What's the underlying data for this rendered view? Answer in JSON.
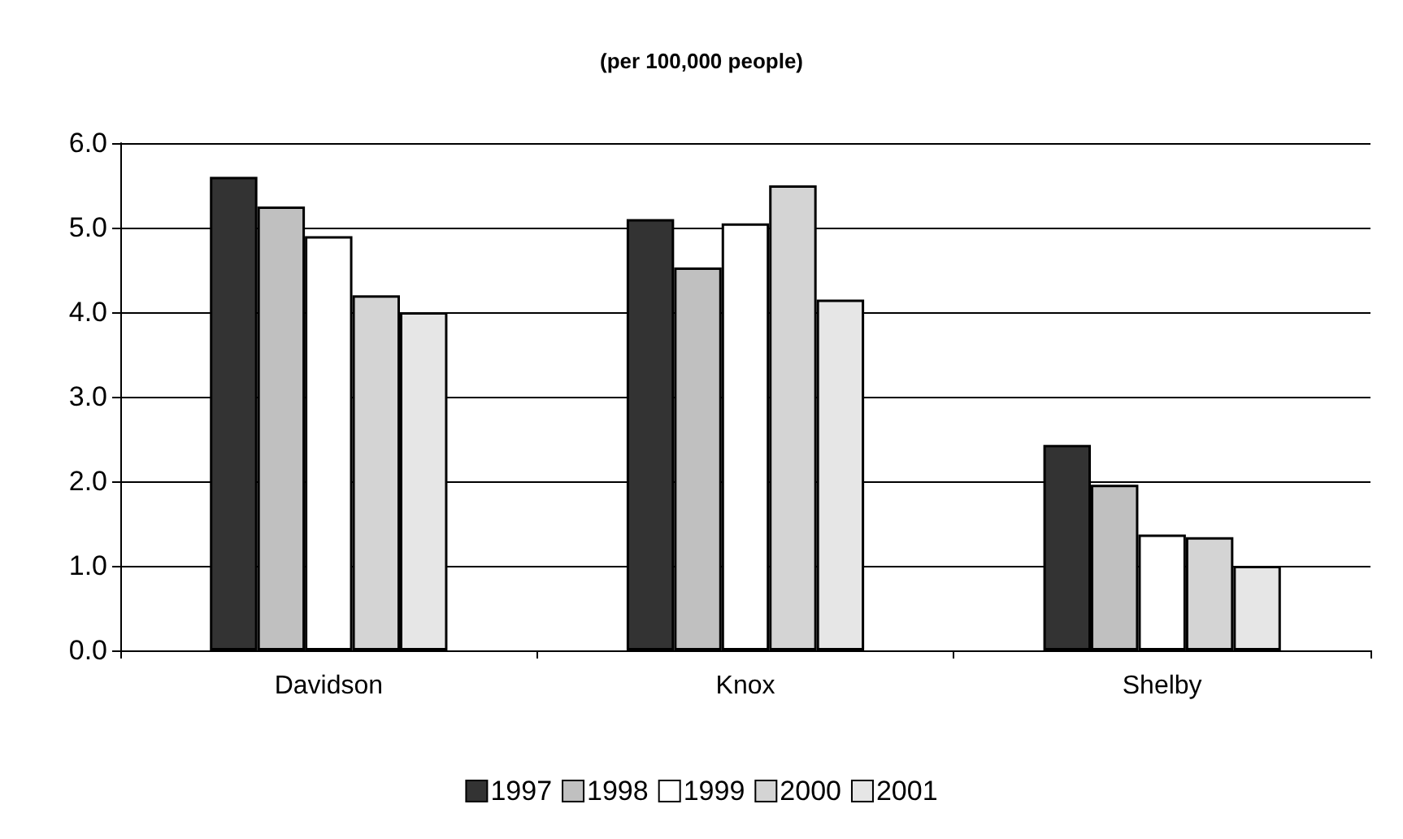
{
  "chart_data": {
    "type": "bar",
    "title": "(per 100,000 people)",
    "categories": [
      "Davidson",
      "Knox",
      "Shelby"
    ],
    "series": [
      {
        "name": "1997",
        "color": "#333333",
        "values": [
          5.6,
          5.1,
          2.43
        ]
      },
      {
        "name": "1998",
        "color": "#c0c0c0",
        "values": [
          5.25,
          4.53,
          1.96
        ]
      },
      {
        "name": "1999",
        "color": "#ffffff",
        "values": [
          4.9,
          5.05,
          1.37
        ]
      },
      {
        "name": "2000",
        "color": "#d4d4d4",
        "values": [
          4.2,
          5.5,
          1.34
        ]
      },
      {
        "name": "2001",
        "color": "#e6e6e6",
        "values": [
          4.0,
          4.15,
          1.0
        ]
      }
    ],
    "ylim": [
      0,
      6
    ],
    "yticks": [
      {
        "value": 0,
        "label": "0.0"
      },
      {
        "value": 1,
        "label": "1.0"
      },
      {
        "value": 2,
        "label": "2.0"
      },
      {
        "value": 3,
        "label": "3.0"
      },
      {
        "value": 4,
        "label": "4.0"
      },
      {
        "value": 5,
        "label": "5.0"
      },
      {
        "value": 6,
        "label": "6.0"
      }
    ],
    "grid": "y",
    "legend": "bottom"
  }
}
